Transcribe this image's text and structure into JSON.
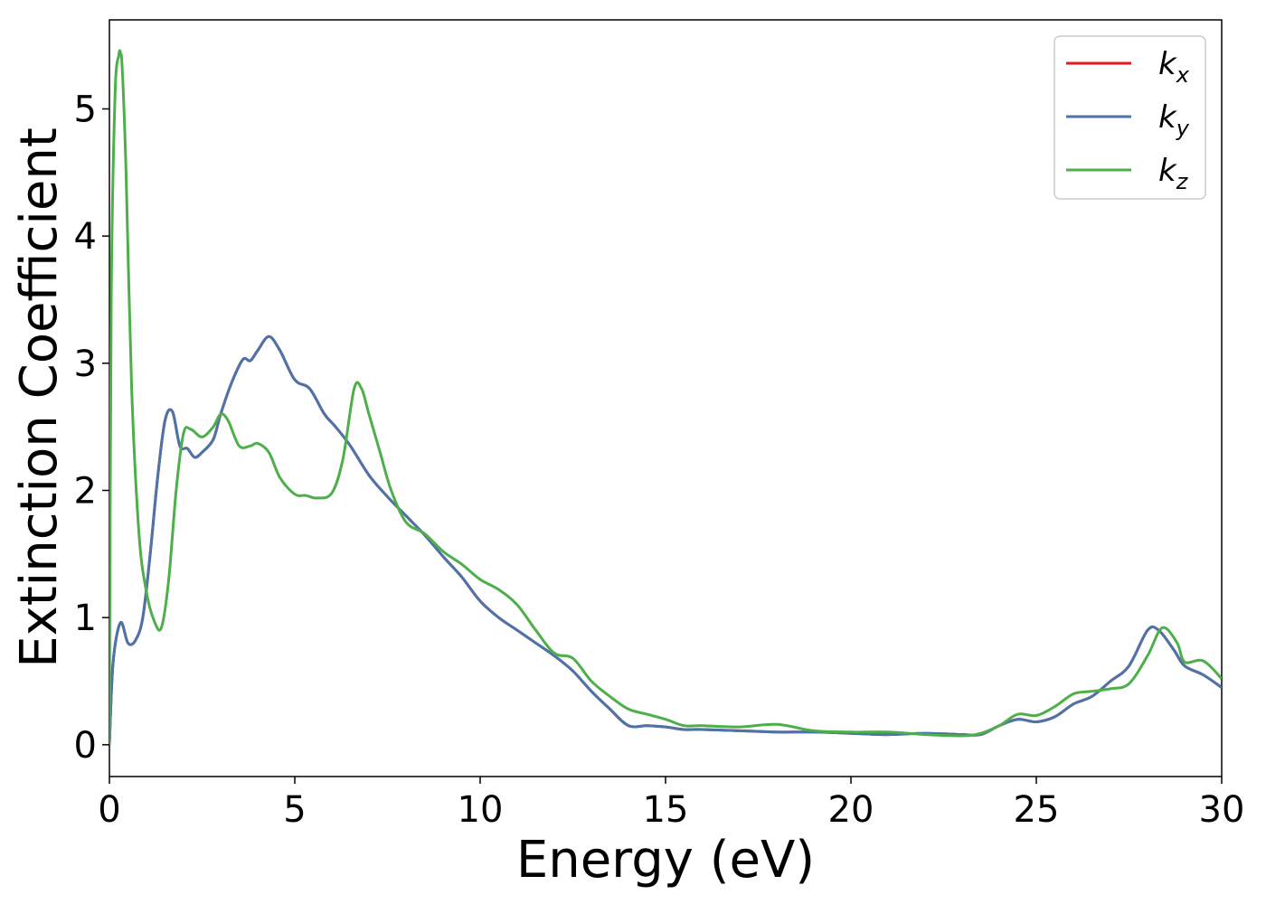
{
  "chart_data": {
    "type": "line",
    "title": "",
    "xlabel": "Energy (eV)",
    "ylabel": "Extinction Coefficient",
    "xlim": [
      0,
      30
    ],
    "ylim": [
      -0.25,
      5.7
    ],
    "xticks": [
      0,
      5,
      10,
      15,
      20,
      25,
      30
    ],
    "yticks": [
      0,
      1,
      2,
      3,
      4,
      5
    ],
    "grid": false,
    "legend_position": "top-right",
    "series": [
      {
        "name": "k",
        "subscript": "x",
        "color": "#e41a1c",
        "x": [
          0,
          0.1,
          0.3,
          0.5,
          0.7,
          0.9,
          1.1,
          1.3,
          1.5,
          1.7,
          1.9,
          2.1,
          2.3,
          2.5,
          2.8,
          3.0,
          3.3,
          3.6,
          3.8,
          4.0,
          4.3,
          4.6,
          5.0,
          5.4,
          5.8,
          6.1,
          6.5,
          7.0,
          7.5,
          8.0,
          8.5,
          9.0,
          9.5,
          10.0,
          10.5,
          11.0,
          11.5,
          12.0,
          12.5,
          13.0,
          13.5,
          14.0,
          14.5,
          15.0,
          15.5,
          16.0,
          17.0,
          18.0,
          19.0,
          20.0,
          21.0,
          22.0,
          23.0,
          23.5,
          24.0,
          24.5,
          25.0,
          25.5,
          26.0,
          26.5,
          27.0,
          27.5,
          28.0,
          28.3,
          28.7,
          29.0,
          29.5,
          30.0
        ],
        "y": [
          0,
          0.65,
          0.96,
          0.8,
          0.82,
          1.0,
          1.5,
          2.1,
          2.55,
          2.62,
          2.35,
          2.33,
          2.26,
          2.3,
          2.4,
          2.6,
          2.85,
          3.03,
          3.02,
          3.1,
          3.21,
          3.1,
          2.87,
          2.8,
          2.6,
          2.5,
          2.35,
          2.12,
          1.95,
          1.8,
          1.65,
          1.48,
          1.32,
          1.13,
          1.0,
          0.9,
          0.8,
          0.7,
          0.58,
          0.42,
          0.28,
          0.15,
          0.15,
          0.14,
          0.12,
          0.12,
          0.11,
          0.1,
          0.1,
          0.09,
          0.08,
          0.09,
          0.08,
          0.08,
          0.15,
          0.2,
          0.18,
          0.22,
          0.32,
          0.38,
          0.5,
          0.62,
          0.9,
          0.9,
          0.75,
          0.62,
          0.55,
          0.45
        ]
      },
      {
        "name": "k",
        "subscript": "y",
        "color": "#4a74aa",
        "x": [
          0,
          0.1,
          0.3,
          0.5,
          0.7,
          0.9,
          1.1,
          1.3,
          1.5,
          1.7,
          1.9,
          2.1,
          2.3,
          2.5,
          2.8,
          3.0,
          3.3,
          3.6,
          3.8,
          4.0,
          4.3,
          4.6,
          5.0,
          5.4,
          5.8,
          6.1,
          6.5,
          7.0,
          7.5,
          8.0,
          8.5,
          9.0,
          9.5,
          10.0,
          10.5,
          11.0,
          11.5,
          12.0,
          12.5,
          13.0,
          13.5,
          14.0,
          14.5,
          15.0,
          15.5,
          16.0,
          17.0,
          18.0,
          19.0,
          20.0,
          21.0,
          22.0,
          23.0,
          23.5,
          24.0,
          24.5,
          25.0,
          25.5,
          26.0,
          26.5,
          27.0,
          27.5,
          28.0,
          28.3,
          28.7,
          29.0,
          29.5,
          30.0
        ],
        "y": [
          0,
          0.65,
          0.96,
          0.8,
          0.82,
          1.0,
          1.5,
          2.1,
          2.55,
          2.62,
          2.35,
          2.33,
          2.26,
          2.3,
          2.4,
          2.6,
          2.85,
          3.03,
          3.02,
          3.1,
          3.21,
          3.1,
          2.87,
          2.8,
          2.6,
          2.5,
          2.35,
          2.12,
          1.95,
          1.8,
          1.65,
          1.48,
          1.32,
          1.13,
          1.0,
          0.9,
          0.8,
          0.7,
          0.58,
          0.42,
          0.28,
          0.15,
          0.15,
          0.14,
          0.12,
          0.12,
          0.11,
          0.1,
          0.1,
          0.09,
          0.08,
          0.09,
          0.08,
          0.08,
          0.15,
          0.2,
          0.18,
          0.22,
          0.32,
          0.38,
          0.5,
          0.62,
          0.9,
          0.9,
          0.75,
          0.62,
          0.55,
          0.45
        ]
      },
      {
        "name": "k",
        "subscript": "z",
        "color": "#4daf4a",
        "x": [
          0,
          0.05,
          0.15,
          0.25,
          0.3,
          0.35,
          0.45,
          0.6,
          0.8,
          1.0,
          1.2,
          1.4,
          1.6,
          1.8,
          2.0,
          2.2,
          2.5,
          2.8,
          3.0,
          3.2,
          3.5,
          3.8,
          4.0,
          4.3,
          4.6,
          5.0,
          5.3,
          5.6,
          6.0,
          6.3,
          6.6,
          6.8,
          7.0,
          7.3,
          7.6,
          8.0,
          8.5,
          9.0,
          9.5,
          10.0,
          10.5,
          11.0,
          11.5,
          12.0,
          12.5,
          13.0,
          13.5,
          14.0,
          14.5,
          15.0,
          15.5,
          16.0,
          17.0,
          18.0,
          19.0,
          20.0,
          21.0,
          22.0,
          23.0,
          23.5,
          24.0,
          24.5,
          25.0,
          25.5,
          26.0,
          26.5,
          27.0,
          27.5,
          28.0,
          28.4,
          28.8,
          29.0,
          29.5,
          30.0
        ],
        "y": [
          0,
          3.5,
          5.1,
          5.42,
          5.44,
          5.3,
          4.5,
          2.8,
          1.65,
          1.2,
          0.98,
          0.92,
          1.3,
          2.0,
          2.45,
          2.48,
          2.42,
          2.5,
          2.6,
          2.55,
          2.35,
          2.35,
          2.37,
          2.3,
          2.1,
          1.97,
          1.96,
          1.94,
          1.98,
          2.25,
          2.8,
          2.8,
          2.6,
          2.3,
          2.0,
          1.75,
          1.66,
          1.52,
          1.42,
          1.3,
          1.22,
          1.1,
          0.9,
          0.72,
          0.68,
          0.5,
          0.38,
          0.28,
          0.24,
          0.2,
          0.15,
          0.15,
          0.14,
          0.16,
          0.11,
          0.1,
          0.1,
          0.08,
          0.07,
          0.09,
          0.15,
          0.24,
          0.23,
          0.3,
          0.4,
          0.42,
          0.44,
          0.48,
          0.7,
          0.92,
          0.8,
          0.65,
          0.66,
          0.52
        ]
      }
    ]
  }
}
